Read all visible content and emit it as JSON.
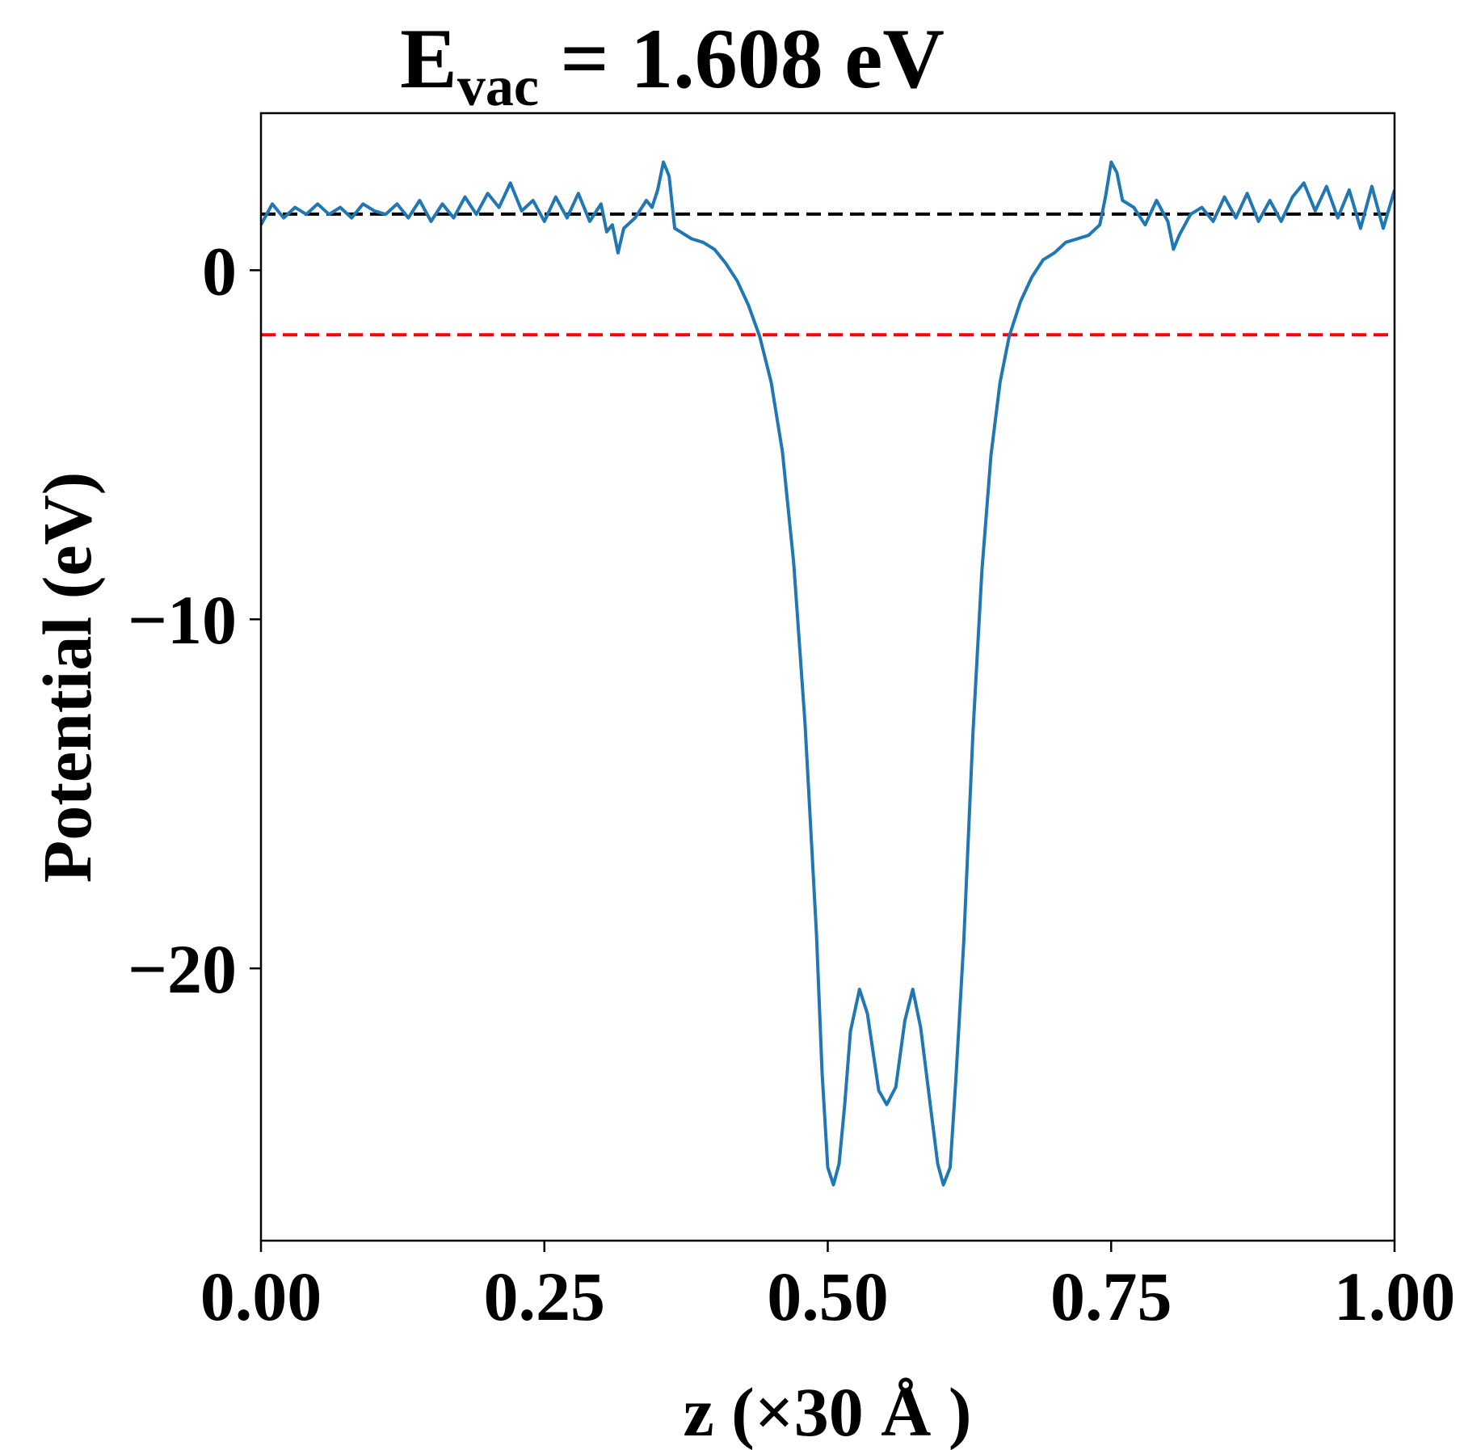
{
  "chart_data": {
    "type": "line",
    "title": {
      "prefix": "E",
      "subscript": "vac",
      "suffix": " = 1.608 eV"
    },
    "xlabel": "z (×30 Å )",
    "ylabel": "Potential (eV)",
    "xlim": [
      0,
      1
    ],
    "ylim": [
      -27.8,
      4.5
    ],
    "x_ticks": [
      {
        "value": 0.0,
        "label": "0.00"
      },
      {
        "value": 0.25,
        "label": "0.25"
      },
      {
        "value": 0.5,
        "label": "0.50"
      },
      {
        "value": 0.75,
        "label": "0.75"
      },
      {
        "value": 1.0,
        "label": "1.00"
      }
    ],
    "y_ticks": [
      {
        "value": 0,
        "label": "0"
      },
      {
        "value": -10,
        "label": "−10"
      },
      {
        "value": -20,
        "label": "−20"
      }
    ],
    "reference_lines": [
      {
        "name": "vacuum-level",
        "y": 1.608,
        "color": "#000000",
        "style": "dashed"
      },
      {
        "name": "fermi-level",
        "y": -1.85,
        "color": "#ff0000",
        "style": "dashed"
      }
    ],
    "series": [
      {
        "name": "planar-averaged-potential",
        "color": "#1f77b4",
        "points": [
          [
            0.0,
            1.3
          ],
          [
            0.01,
            1.9
          ],
          [
            0.02,
            1.5
          ],
          [
            0.03,
            1.8
          ],
          [
            0.04,
            1.6
          ],
          [
            0.05,
            1.9
          ],
          [
            0.06,
            1.6
          ],
          [
            0.07,
            1.8
          ],
          [
            0.08,
            1.5
          ],
          [
            0.09,
            1.9
          ],
          [
            0.1,
            1.7
          ],
          [
            0.11,
            1.6
          ],
          [
            0.12,
            1.9
          ],
          [
            0.13,
            1.5
          ],
          [
            0.14,
            2.0
          ],
          [
            0.15,
            1.4
          ],
          [
            0.16,
            1.9
          ],
          [
            0.17,
            1.5
          ],
          [
            0.18,
            2.1
          ],
          [
            0.19,
            1.6
          ],
          [
            0.2,
            2.2
          ],
          [
            0.21,
            1.8
          ],
          [
            0.22,
            2.5
          ],
          [
            0.23,
            1.7
          ],
          [
            0.24,
            2.0
          ],
          [
            0.25,
            1.4
          ],
          [
            0.26,
            2.1
          ],
          [
            0.27,
            1.5
          ],
          [
            0.28,
            2.2
          ],
          [
            0.29,
            1.4
          ],
          [
            0.3,
            1.9
          ],
          [
            0.305,
            1.1
          ],
          [
            0.31,
            1.3
          ],
          [
            0.315,
            0.5
          ],
          [
            0.32,
            1.2
          ],
          [
            0.33,
            1.5
          ],
          [
            0.34,
            2.0
          ],
          [
            0.345,
            1.8
          ],
          [
            0.35,
            2.3
          ],
          [
            0.355,
            3.1
          ],
          [
            0.36,
            2.7
          ],
          [
            0.365,
            1.2
          ],
          [
            0.37,
            1.1
          ],
          [
            0.38,
            0.9
          ],
          [
            0.39,
            0.8
          ],
          [
            0.4,
            0.6
          ],
          [
            0.41,
            0.2
          ],
          [
            0.42,
            -0.3
          ],
          [
            0.43,
            -1.0
          ],
          [
            0.44,
            -1.9
          ],
          [
            0.45,
            -3.2
          ],
          [
            0.46,
            -5.2
          ],
          [
            0.47,
            -8.4
          ],
          [
            0.48,
            -13.0
          ],
          [
            0.49,
            -19.0
          ],
          [
            0.495,
            -23.0
          ],
          [
            0.5,
            -25.7
          ],
          [
            0.505,
            -26.2
          ],
          [
            0.51,
            -25.6
          ],
          [
            0.515,
            -23.9
          ],
          [
            0.52,
            -21.8
          ],
          [
            0.528,
            -20.6
          ],
          [
            0.535,
            -21.3
          ],
          [
            0.545,
            -23.5
          ],
          [
            0.552,
            -23.9
          ],
          [
            0.56,
            -23.4
          ],
          [
            0.568,
            -21.5
          ],
          [
            0.575,
            -20.6
          ],
          [
            0.582,
            -21.7
          ],
          [
            0.59,
            -23.8
          ],
          [
            0.597,
            -25.6
          ],
          [
            0.602,
            -26.2
          ],
          [
            0.608,
            -25.7
          ],
          [
            0.613,
            -23.2
          ],
          [
            0.62,
            -19.2
          ],
          [
            0.628,
            -13.3
          ],
          [
            0.636,
            -8.6
          ],
          [
            0.644,
            -5.3
          ],
          [
            0.652,
            -3.2
          ],
          [
            0.66,
            -1.9
          ],
          [
            0.67,
            -0.9
          ],
          [
            0.68,
            -0.2
          ],
          [
            0.69,
            0.3
          ],
          [
            0.7,
            0.5
          ],
          [
            0.71,
            0.8
          ],
          [
            0.72,
            0.9
          ],
          [
            0.73,
            1.0
          ],
          [
            0.74,
            1.3
          ],
          [
            0.745,
            2.1
          ],
          [
            0.75,
            3.1
          ],
          [
            0.755,
            2.8
          ],
          [
            0.76,
            2.0
          ],
          [
            0.77,
            1.8
          ],
          [
            0.78,
            1.3
          ],
          [
            0.79,
            2.0
          ],
          [
            0.8,
            1.4
          ],
          [
            0.805,
            0.6
          ],
          [
            0.81,
            1.0
          ],
          [
            0.82,
            1.6
          ],
          [
            0.83,
            1.8
          ],
          [
            0.84,
            1.4
          ],
          [
            0.85,
            2.1
          ],
          [
            0.86,
            1.5
          ],
          [
            0.87,
            2.2
          ],
          [
            0.88,
            1.4
          ],
          [
            0.89,
            2.0
          ],
          [
            0.9,
            1.4
          ],
          [
            0.91,
            2.1
          ],
          [
            0.92,
            2.5
          ],
          [
            0.93,
            1.7
          ],
          [
            0.94,
            2.4
          ],
          [
            0.95,
            1.5
          ],
          [
            0.96,
            2.3
          ],
          [
            0.97,
            1.2
          ],
          [
            0.98,
            2.4
          ],
          [
            0.99,
            1.2
          ],
          [
            1.0,
            2.3
          ]
        ]
      }
    ]
  }
}
